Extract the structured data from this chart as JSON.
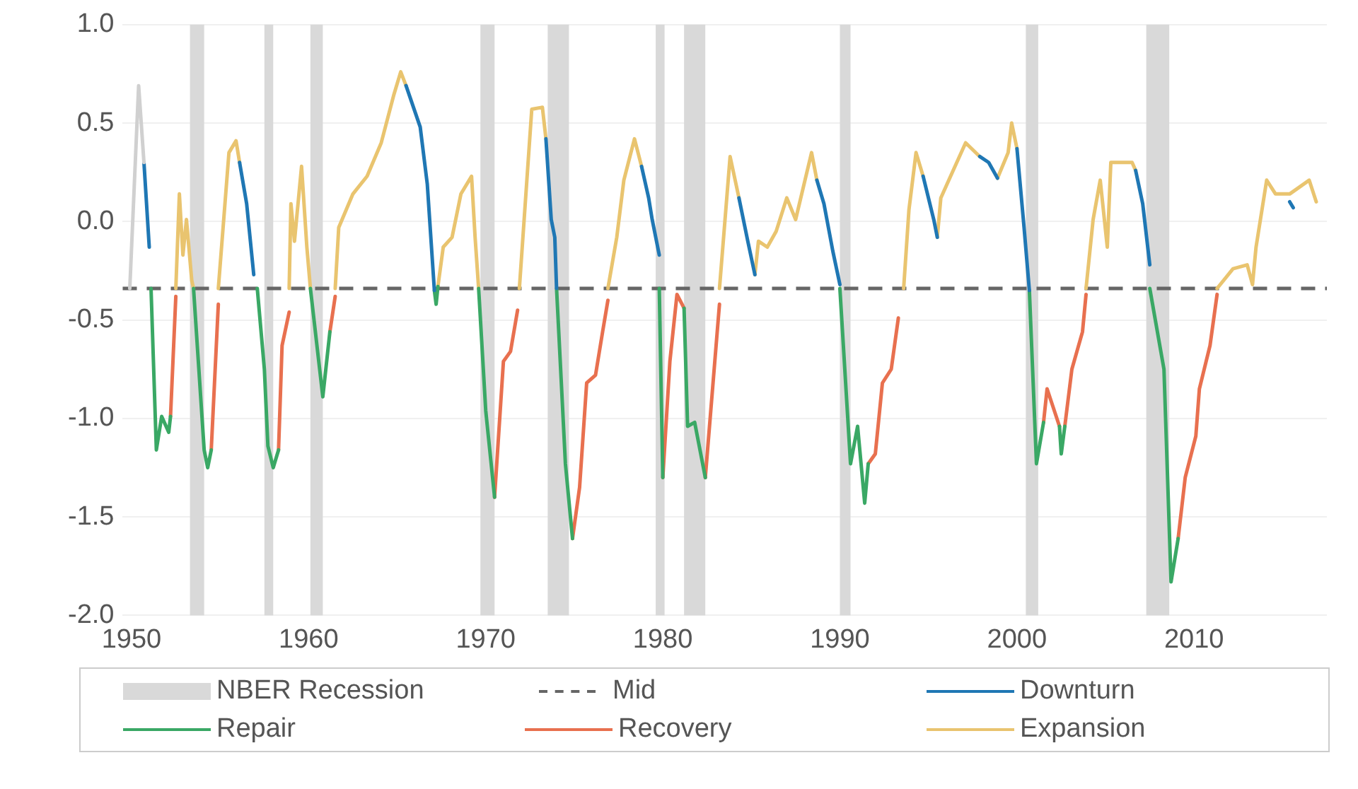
{
  "chart_data": {
    "type": "line",
    "xlim": [
      1949.5,
      2017.5
    ],
    "xticks": [
      1950,
      1960,
      1970,
      1980,
      1990,
      2000,
      2010
    ],
    "ylim": [
      -2.0,
      1.0
    ],
    "yticks": [
      {
        "value": 1.0,
        "label": "1.0"
      },
      {
        "value": 0.5,
        "label": "0.5"
      },
      {
        "value": 0.0,
        "label": "0.0"
      },
      {
        "value": -0.5,
        "label": "-0.5"
      },
      {
        "value": -1.0,
        "label": "-1.0"
      },
      {
        "value": -1.5,
        "label": "-1.5"
      },
      {
        "value": -2.0,
        "label": "-2.0"
      }
    ],
    "grid": "y",
    "legend": "bottom",
    "bands": [
      {
        "axis": "x",
        "from": 1953.3,
        "to": 1954.1,
        "label": "NBER Recession",
        "color": "#d9d9d9"
      },
      {
        "axis": "x",
        "from": 1957.5,
        "to": 1958.0,
        "color": "#d9d9d9"
      },
      {
        "axis": "x",
        "from": 1960.1,
        "to": 1960.8,
        "color": "#d9d9d9"
      },
      {
        "axis": "x",
        "from": 1969.7,
        "to": 1970.5,
        "color": "#d9d9d9"
      },
      {
        "axis": "x",
        "from": 1973.5,
        "to": 1974.7,
        "color": "#d9d9d9"
      },
      {
        "axis": "x",
        "from": 1979.6,
        "to": 1980.1,
        "color": "#d9d9d9"
      },
      {
        "axis": "x",
        "from": 1981.2,
        "to": 1982.4,
        "color": "#d9d9d9"
      },
      {
        "axis": "x",
        "from": 1990.0,
        "to": 1990.6,
        "color": "#d9d9d9"
      },
      {
        "axis": "x",
        "from": 2000.5,
        "to": 2001.2,
        "color": "#d9d9d9"
      },
      {
        "axis": "x",
        "from": 2007.3,
        "to": 2008.6,
        "color": "#d9d9d9"
      }
    ],
    "ref_lines": [
      {
        "axis": "y",
        "value": -0.34,
        "label": "Mid",
        "color": "#666666",
        "line_style": "dashed"
      }
    ],
    "series": [
      {
        "color": "#d0d0d0",
        "x": [
          1949.9,
          1950.4,
          1950.7
        ],
        "values": [
          -0.34,
          0.69,
          0.3
        ]
      },
      {
        "name": "Downturn",
        "color": "#1f77b4",
        "x": [
          1950.7,
          1951.0,
          null,
          1956.1,
          1956.5,
          1956.9,
          null,
          1965.5,
          1966.3,
          1966.7,
          1967.1,
          null,
          1973.4,
          1973.7,
          1973.9,
          1974.0,
          null,
          1978.8,
          1979.2,
          1979.4,
          1979.8,
          null,
          1984.3,
          1984.8,
          1985.2,
          null,
          1988.7,
          1989.1,
          1989.6,
          1990.0,
          null,
          1994.7,
          1995.3,
          1995.5,
          null,
          1997.9,
          1998.4,
          1998.9,
          null,
          2000.0,
          2000.4,
          2000.7,
          null,
          2006.7,
          2007.1,
          2007.5,
          null,
          2015.4,
          2015.6
        ],
        "values": [
          0.3,
          -0.13,
          null,
          0.3,
          0.09,
          -0.27,
          null,
          0.69,
          0.48,
          0.19,
          -0.35,
          null,
          0.42,
          0.01,
          -0.08,
          -0.34,
          null,
          0.28,
          0.12,
          0.01,
          -0.17,
          null,
          0.12,
          -0.1,
          -0.27,
          null,
          0.21,
          0.09,
          -0.15,
          -0.32,
          null,
          0.23,
          0.01,
          -0.08,
          null,
          0.33,
          0.3,
          0.22,
          null,
          0.37,
          -0.03,
          -0.35,
          null,
          0.26,
          0.09,
          -0.22,
          null,
          0.1,
          0.07
        ]
      },
      {
        "name": "Repair",
        "color": "#3aa865",
        "x": [
          1951.1,
          1951.4,
          1951.7,
          1952.1,
          1952.2,
          null,
          1953.5,
          1954.1,
          1954.3,
          1954.5,
          null,
          1957.1,
          1957.5,
          1957.7,
          1958.0,
          1958.3,
          null,
          1960.1,
          1960.8,
          1961.2,
          null,
          1967.1,
          1967.2,
          1967.3,
          null,
          1969.6,
          1970.0,
          1970.5,
          null,
          1974.0,
          1974.5,
          1974.9,
          null,
          1979.8,
          1980.0,
          null,
          1981.2,
          1981.4,
          1981.8,
          1982.4,
          null,
          1990.0,
          1990.6,
          1991.0,
          1991.4,
          1991.6,
          null,
          2000.7,
          2001.1,
          2001.5,
          null,
          2002.4,
          2002.5,
          2002.7,
          null,
          2007.5,
          2008.3,
          2008.7,
          2009.1
        ],
        "values": [
          -0.34,
          -1.16,
          -0.99,
          -1.07,
          -0.99,
          null,
          -0.34,
          -1.16,
          -1.25,
          -1.16,
          null,
          -0.34,
          -0.75,
          -1.14,
          -1.25,
          -1.16,
          null,
          -0.34,
          -0.89,
          -0.56,
          null,
          -0.35,
          -0.42,
          -0.33,
          null,
          -0.34,
          -0.96,
          -1.4,
          null,
          -0.34,
          -1.23,
          -1.61,
          null,
          -0.34,
          -1.3,
          null,
          -0.44,
          -1.04,
          -1.02,
          -1.3,
          null,
          -0.34,
          -1.23,
          -1.04,
          -1.43,
          -1.23,
          null,
          -0.35,
          -1.23,
          -1.02,
          null,
          -1.04,
          -1.18,
          -1.04,
          null,
          -0.34,
          -0.75,
          -1.83,
          -1.61
        ]
      },
      {
        "name": "Recovery",
        "color": "#e8704f",
        "x": [
          1952.2,
          1952.5,
          null,
          1954.5,
          1954.9,
          null,
          1958.3,
          1958.5,
          1958.9,
          null,
          1961.2,
          1961.5,
          null,
          1970.5,
          1971.0,
          1971.4,
          1971.8,
          null,
          1974.9,
          1975.3,
          1975.7,
          1976.2,
          1976.6,
          1976.9,
          null,
          1980.0,
          1980.4,
          1980.8,
          1981.2,
          null,
          1982.4,
          1983.2,
          null,
          1991.6,
          1992.0,
          1992.4,
          1992.9,
          1993.3,
          null,
          2001.5,
          2001.7,
          2002.4,
          null,
          2002.7,
          2003.1,
          2003.7,
          2003.9,
          null,
          2009.1,
          2009.5,
          2010.1,
          2010.3,
          2010.9,
          2011.3
        ],
        "values": [
          -0.99,
          -0.38,
          null,
          -1.16,
          -0.42,
          null,
          -1.16,
          -0.63,
          -0.46,
          null,
          -0.56,
          -0.38,
          null,
          -1.4,
          -0.71,
          -0.66,
          -0.45,
          null,
          -1.61,
          -1.35,
          -0.82,
          -0.78,
          -0.56,
          -0.4,
          null,
          -1.3,
          -0.71,
          -0.37,
          -0.44,
          null,
          -1.3,
          -0.42,
          null,
          -1.23,
          -1.18,
          -0.82,
          -0.75,
          -0.49,
          null,
          -1.02,
          -0.85,
          -1.04,
          null,
          -1.04,
          -0.75,
          -0.56,
          -0.37,
          null,
          -1.61,
          -1.3,
          -1.09,
          -0.85,
          -0.63,
          -0.37
        ]
      },
      {
        "name": "Expansion",
        "color": "#e9c46f",
        "x": [
          1952.5,
          1952.7,
          1952.9,
          1953.1,
          1953.4,
          1953.5,
          null,
          1954.9,
          1955.5,
          1955.9,
          1956.1,
          null,
          1958.9,
          1959.0,
          1959.2,
          1959.6,
          1959.9,
          1960.1,
          null,
          1961.5,
          1961.7,
          1962.5,
          1963.3,
          1964.1,
          1964.8,
          1965.2,
          1965.5,
          null,
          1967.3,
          1967.6,
          1968.1,
          1968.6,
          1969.2,
          1969.4,
          1969.6,
          null,
          1971.9,
          1972.6,
          1973.2,
          1973.4,
          null,
          1976.9,
          1977.4,
          1977.8,
          1978.4,
          1978.8,
          null,
          1983.2,
          1983.8,
          1984.3,
          null,
          1985.2,
          1985.4,
          1985.9,
          1986.4,
          1987.0,
          1987.5,
          1988.4,
          1988.7,
          null,
          1993.6,
          1993.9,
          1994.3,
          1994.7,
          null,
          1995.5,
          1995.7,
          1997.1,
          1997.9,
          null,
          1998.9,
          1999.5,
          1999.7,
          2000.0,
          null,
          2003.9,
          2004.3,
          2004.7,
          2005.1,
          2005.3,
          2005.9,
          2006.5,
          2006.7,
          null,
          2011.3,
          2012.2,
          2013.0,
          2013.3,
          2013.5,
          2014.1,
          2014.6,
          2015.4,
          2016.5,
          2016.9
        ],
        "values": [
          -0.34,
          0.14,
          -0.17,
          0.01,
          -0.3,
          -0.34,
          null,
          -0.34,
          0.35,
          0.41,
          0.3,
          null,
          -0.34,
          0.09,
          -0.1,
          0.28,
          -0.13,
          -0.34,
          null,
          -0.34,
          -0.03,
          0.14,
          0.23,
          0.4,
          0.64,
          0.76,
          0.69,
          null,
          -0.33,
          -0.13,
          -0.08,
          0.14,
          0.23,
          -0.08,
          -0.34,
          null,
          -0.34,
          0.57,
          0.58,
          0.42,
          null,
          -0.34,
          -0.08,
          0.21,
          0.42,
          0.28,
          null,
          -0.34,
          0.33,
          0.12,
          null,
          -0.27,
          -0.1,
          -0.13,
          -0.05,
          0.12,
          0.01,
          0.35,
          0.21,
          null,
          -0.34,
          0.06,
          0.35,
          0.23,
          null,
          -0.08,
          0.12,
          0.4,
          0.33,
          null,
          0.22,
          0.35,
          0.5,
          0.37,
          null,
          -0.34,
          0.01,
          0.21,
          -0.13,
          0.3,
          0.3,
          0.3,
          0.26,
          null,
          -0.34,
          -0.24,
          -0.22,
          -0.32,
          -0.13,
          0.21,
          0.14,
          0.14,
          0.21,
          0.1
        ]
      }
    ]
  }
}
